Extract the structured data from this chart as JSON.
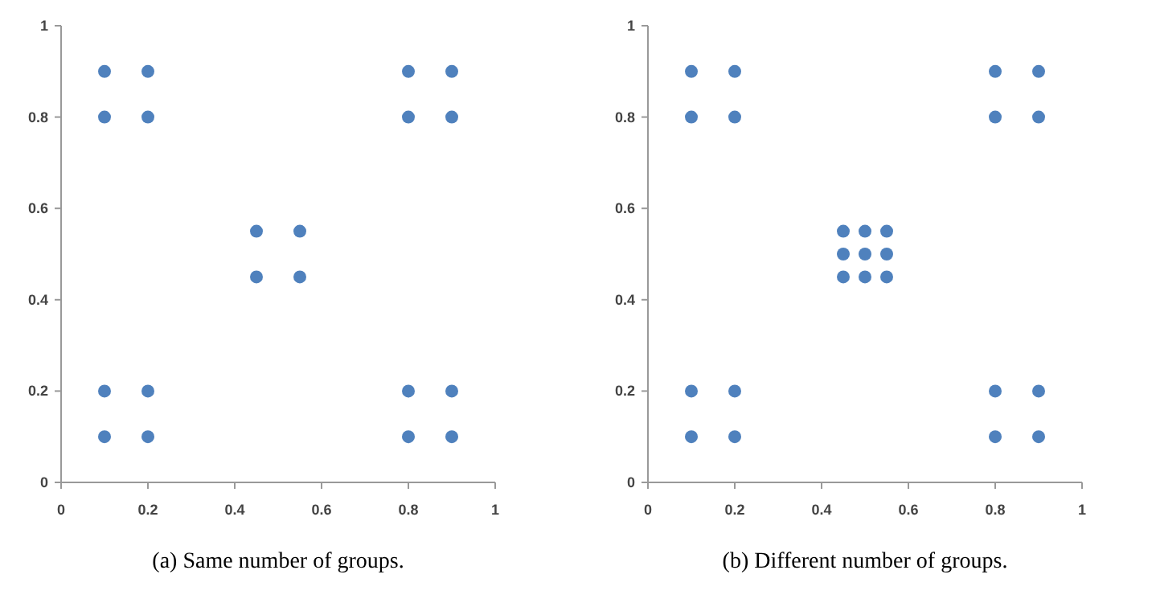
{
  "chart_data": [
    {
      "type": "scatter",
      "title": "(a)  Same number of groups.",
      "xlim": [
        0,
        1
      ],
      "ylim": [
        0,
        1
      ],
      "xticks": [
        0,
        0.2,
        0.4,
        0.6,
        0.8,
        1
      ],
      "yticks": [
        0,
        0.2,
        0.4,
        0.6,
        0.8,
        1
      ],
      "grid": false,
      "marker": "circle",
      "series": [
        {
          "color": "#4f81bd",
          "x": [
            0.1,
            0.2,
            0.1,
            0.2,
            0.8,
            0.9,
            0.8,
            0.9,
            0.45,
            0.55,
            0.45,
            0.55,
            0.1,
            0.2,
            0.1,
            0.2,
            0.8,
            0.9,
            0.8,
            0.9
          ],
          "values": [
            0.9,
            0.9,
            0.8,
            0.8,
            0.9,
            0.9,
            0.8,
            0.8,
            0.55,
            0.55,
            0.45,
            0.45,
            0.2,
            0.2,
            0.1,
            0.1,
            0.2,
            0.2,
            0.1,
            0.1
          ]
        }
      ]
    },
    {
      "type": "scatter",
      "title": "(b)  Different number of groups.",
      "xlim": [
        0,
        1
      ],
      "ylim": [
        0,
        1
      ],
      "xticks": [
        0,
        0.2,
        0.4,
        0.6,
        0.8,
        1
      ],
      "yticks": [
        0,
        0.2,
        0.4,
        0.6,
        0.8,
        1
      ],
      "grid": false,
      "marker": "circle",
      "series": [
        {
          "color": "#4f81bd",
          "x": [
            0.1,
            0.2,
            0.1,
            0.2,
            0.8,
            0.9,
            0.8,
            0.9,
            0.45,
            0.5,
            0.55,
            0.45,
            0.5,
            0.55,
            0.45,
            0.5,
            0.55,
            0.1,
            0.2,
            0.1,
            0.2,
            0.8,
            0.9,
            0.8,
            0.9
          ],
          "values": [
            0.9,
            0.9,
            0.8,
            0.8,
            0.9,
            0.9,
            0.8,
            0.8,
            0.55,
            0.55,
            0.55,
            0.5,
            0.5,
            0.5,
            0.45,
            0.45,
            0.45,
            0.2,
            0.2,
            0.1,
            0.1,
            0.2,
            0.2,
            0.1,
            0.1
          ]
        }
      ]
    }
  ]
}
